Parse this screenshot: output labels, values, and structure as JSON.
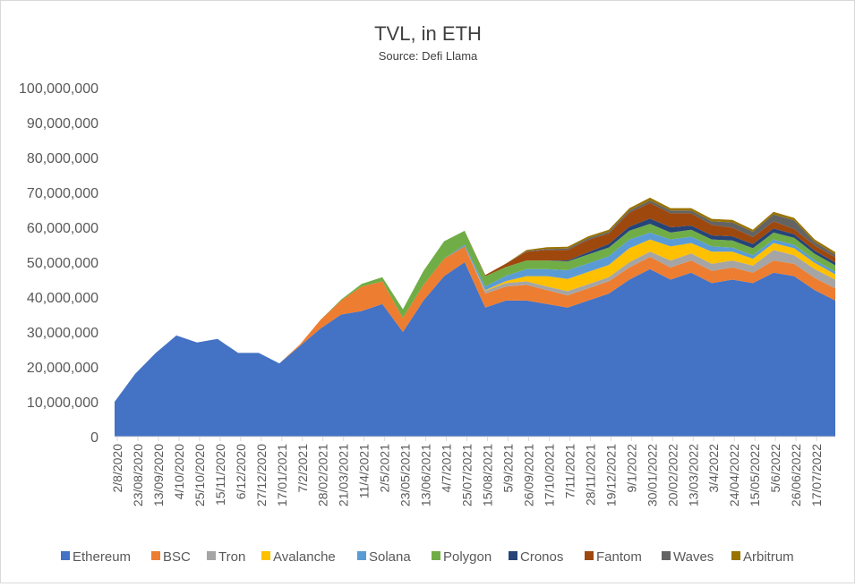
{
  "chart_data": {
    "type": "area",
    "stacked": true,
    "title": "TVL, in ETH",
    "subtitle": "Source: Defi Llama",
    "xlabel": "",
    "ylabel": "",
    "ylim": [
      0,
      100000000
    ],
    "yticks": [
      0,
      10000000,
      20000000,
      30000000,
      40000000,
      50000000,
      60000000,
      70000000,
      80000000,
      90000000,
      100000000
    ],
    "ytick_labels": [
      "0",
      "10,000,000",
      "20,000,000",
      "30,000,000",
      "40,000,000",
      "50,000,000",
      "60,000,000",
      "70,000,000",
      "80,000,000",
      "90,000,000",
      "100,000,000"
    ],
    "grid": false,
    "legend_position": "bottom",
    "x_tick_labels": [
      "2/8/2020",
      "23/08/2020",
      "13/09/2020",
      "4/10/2020",
      "25/10/2020",
      "15/11/2020",
      "6/12/2020",
      "27/12/2020",
      "17/01/2021",
      "7/2/2021",
      "28/02/2021",
      "21/03/2021",
      "11/4/2021",
      "2/5/2021",
      "23/05/2021",
      "13/06/2021",
      "4/7/2021",
      "25/07/2021",
      "15/08/2021",
      "5/9/2021",
      "26/09/2021",
      "17/10/2021",
      "7/11/2021",
      "28/11/2021",
      "19/12/2021",
      "9/1/2022",
      "30/01/2022",
      "20/02/2022",
      "13/03/2022",
      "3/4/2022",
      "24/04/2022",
      "15/05/2022",
      "5/6/2022",
      "26/06/2022",
      "17/07/2022"
    ],
    "x": [
      "2/8/2020",
      "23/08/2020",
      "13/09/2020",
      "4/10/2020",
      "25/10/2020",
      "15/11/2020",
      "6/12/2020",
      "27/12/2020",
      "17/01/2021",
      "7/2/2021",
      "28/02/2021",
      "21/03/2021",
      "11/4/2021",
      "2/5/2021",
      "23/05/2021",
      "13/06/2021",
      "4/7/2021",
      "25/07/2021",
      "15/08/2021",
      "5/9/2021",
      "26/09/2021",
      "17/10/2021",
      "7/11/2021",
      "28/11/2021",
      "19/12/2021",
      "9/1/2022",
      "30/01/2022",
      "20/02/2022",
      "13/03/2022",
      "3/4/2022",
      "24/04/2022",
      "15/05/2022",
      "5/6/2022",
      "26/06/2022",
      "17/07/2022",
      "1/8/2022"
    ],
    "series": [
      {
        "name": "Ethereum",
        "color": "#4472c4",
        "values": [
          10000000,
          18000000,
          24000000,
          29000000,
          27000000,
          28000000,
          24000000,
          24000000,
          21000000,
          26000000,
          31000000,
          35000000,
          36000000,
          38000000,
          30000000,
          39000000,
          46000000,
          50000000,
          37000000,
          39000000,
          39000000,
          38000000,
          37000000,
          39000000,
          41000000,
          45000000,
          48000000,
          45000000,
          47000000,
          44000000,
          45000000,
          44000000,
          47000000,
          46000000,
          42000000,
          39000000
        ]
      },
      {
        "name": "BSC",
        "color": "#ed7d31",
        "values": [
          0,
          0,
          0,
          0,
          0,
          0,
          0,
          0,
          0,
          400000,
          2500000,
          4000000,
          7000000,
          6500000,
          4000000,
          4500000,
          5000000,
          4500000,
          4000000,
          4000000,
          4500000,
          4000000,
          3500000,
          3500000,
          3500000,
          3500000,
          3500000,
          3500000,
          3500000,
          3500000,
          3500000,
          3000000,
          3500000,
          3500000,
          3500000,
          3500000
        ]
      },
      {
        "name": "Tron",
        "color": "#a5a5a5",
        "values": [
          0,
          0,
          0,
          0,
          0,
          0,
          0,
          0,
          0,
          0,
          0,
          0,
          0,
          0,
          0,
          0,
          0,
          0,
          800000,
          1000000,
          1000000,
          1000000,
          1200000,
          1200000,
          1200000,
          1500000,
          1500000,
          2000000,
          2000000,
          2000000,
          2000000,
          2000000,
          3000000,
          2500000,
          2500000,
          2500000
        ]
      },
      {
        "name": "Avalanche",
        "color": "#ffc000",
        "values": [
          0,
          0,
          0,
          0,
          0,
          0,
          0,
          0,
          0,
          0,
          0,
          0,
          0,
          0,
          0,
          0,
          0,
          0,
          200000,
          600000,
          1500000,
          3000000,
          3500000,
          3500000,
          3500000,
          4000000,
          3500000,
          4000000,
          3000000,
          3500000,
          2500000,
          2000000,
          2000000,
          2000000,
          1800000,
          1500000
        ]
      },
      {
        "name": "Solana",
        "color": "#5b9bd5",
        "values": [
          0,
          0,
          0,
          0,
          0,
          0,
          0,
          0,
          0,
          0,
          0,
          0,
          0,
          0,
          0,
          0,
          0,
          500000,
          1000000,
          1500000,
          2000000,
          2000000,
          2500000,
          2500000,
          2500000,
          2500000,
          2000000,
          2000000,
          1800000,
          1500000,
          1200000,
          1000000,
          1000000,
          1000000,
          800000,
          800000
        ]
      },
      {
        "name": "Polygon",
        "color": "#70ad47",
        "values": [
          0,
          0,
          0,
          0,
          0,
          0,
          0,
          0,
          0,
          0,
          0,
          300000,
          800000,
          1200000,
          2500000,
          4000000,
          5000000,
          4000000,
          3000000,
          2500000,
          2500000,
          2500000,
          2500000,
          2500000,
          2500000,
          2500000,
          2500000,
          2000000,
          2000000,
          2000000,
          2000000,
          2000000,
          2000000,
          2000000,
          1800000,
          1800000
        ]
      },
      {
        "name": "Cronos",
        "color": "#264478",
        "values": [
          0,
          0,
          0,
          0,
          0,
          0,
          0,
          0,
          0,
          0,
          0,
          0,
          0,
          0,
          0,
          0,
          0,
          0,
          0,
          0,
          0,
          0,
          300000,
          700000,
          1000000,
          1200000,
          1500000,
          1500000,
          1200000,
          1200000,
          1200000,
          1200000,
          1200000,
          1000000,
          900000,
          800000
        ]
      },
      {
        "name": "Fantom",
        "color": "#9e480e",
        "values": [
          0,
          0,
          0,
          0,
          0,
          0,
          0,
          0,
          0,
          0,
          0,
          0,
          0,
          0,
          0,
          0,
          0,
          0,
          300000,
          1000000,
          2500000,
          3000000,
          3000000,
          3500000,
          3000000,
          4000000,
          4500000,
          4000000,
          3500000,
          3000000,
          2500000,
          2000000,
          2000000,
          1500000,
          1500000,
          1500000
        ]
      },
      {
        "name": "Waves",
        "color": "#636363",
        "values": [
          0,
          0,
          0,
          0,
          0,
          0,
          0,
          0,
          0,
          0,
          0,
          0,
          0,
          0,
          0,
          0,
          0,
          0,
          0,
          0,
          200000,
          300000,
          400000,
          500000,
          500000,
          600000,
          700000,
          800000,
          800000,
          1000000,
          1500000,
          1500000,
          2000000,
          2500000,
          1000000,
          800000
        ]
      },
      {
        "name": "Arbitrum",
        "color": "#997300",
        "values": [
          0,
          0,
          0,
          0,
          0,
          0,
          0,
          0,
          0,
          0,
          0,
          0,
          0,
          0,
          0,
          0,
          0,
          0,
          0,
          0,
          300000,
          500000,
          500000,
          500000,
          600000,
          700000,
          800000,
          700000,
          700000,
          700000,
          700000,
          600000,
          700000,
          700000,
          700000,
          700000
        ]
      }
    ]
  }
}
